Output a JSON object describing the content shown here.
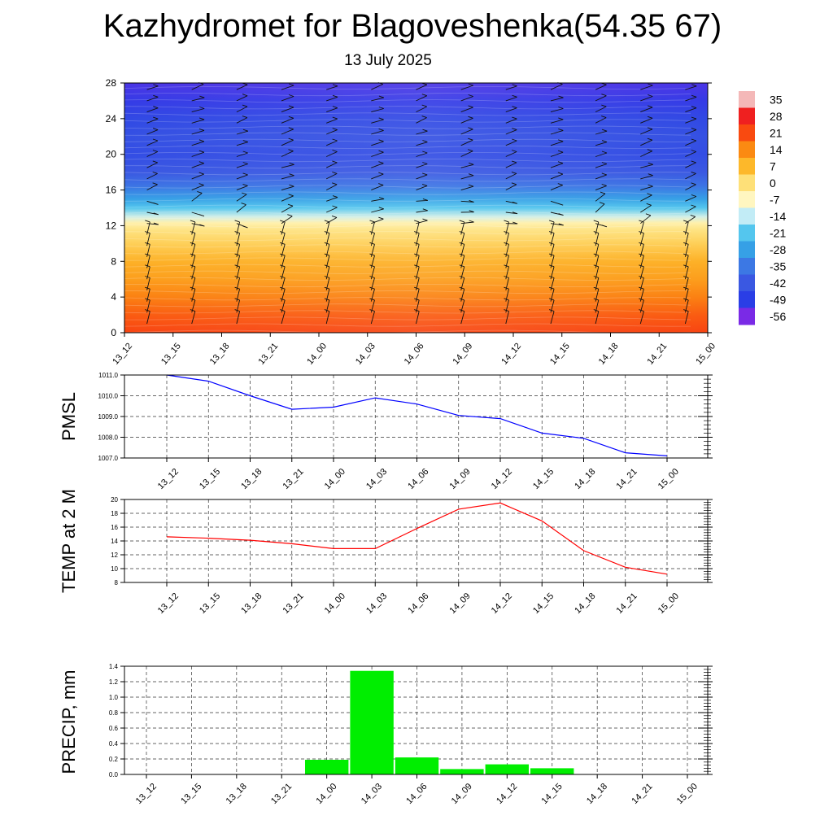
{
  "header": {
    "title": "Kazhydromet for Blagoveshenka(54.35 67)",
    "subtitle": "13 July 2025"
  },
  "chart_data": [
    {
      "type": "heatmap",
      "categories": [
        "13_12",
        "13_15",
        "13_18",
        "13_21",
        "14_00",
        "14_03",
        "14_06",
        "14_09",
        "14_12",
        "14_15",
        "14_18",
        "14_21",
        "15_00"
      ],
      "yticks": [
        0,
        4,
        8,
        12,
        16,
        20,
        24,
        28
      ],
      "ylim": [
        0,
        28
      ],
      "colorbar": {
        "labels": [
          "35",
          "28",
          "21",
          "14",
          "7",
          "0",
          "-7",
          "-14",
          "-21",
          "-28",
          "-35",
          "-42",
          "-49",
          "-56"
        ],
        "colors": [
          "#f4b8b8",
          "#ef2020",
          "#f94a10",
          "#fb8a12",
          "#fdb82a",
          "#fee078",
          "#fff6c0",
          "#c2ecf6",
          "#54c6ee",
          "#36a0e6",
          "#3c78e4",
          "#3a58e2",
          "#2a3ee6",
          "#7a2ae6"
        ]
      },
      "profile": [
        {
          "y": 0,
          "value": 22
        },
        {
          "y": 2,
          "value": 19
        },
        {
          "y": 4,
          "value": 15
        },
        {
          "y": 6,
          "value": 11
        },
        {
          "y": 8,
          "value": 8
        },
        {
          "y": 10,
          "value": 3
        },
        {
          "y": 11.5,
          "value": -1
        },
        {
          "y": 12.3,
          "value": -5
        },
        {
          "y": 13,
          "value": -12
        },
        {
          "y": 14,
          "value": -21
        },
        {
          "y": 15,
          "value": -28
        },
        {
          "y": 16.5,
          "value": -36
        },
        {
          "y": 18,
          "value": -42
        },
        {
          "y": 20,
          "value": -45
        },
        {
          "y": 22,
          "value": -44
        },
        {
          "y": 24,
          "value": -46
        },
        {
          "y": 26,
          "value": -50
        },
        {
          "y": 28,
          "value": -52
        }
      ],
      "grid": false
    },
    {
      "type": "line",
      "ylabel": "PMSL",
      "categories": [
        "13_12",
        "13_15",
        "13_18",
        "13_21",
        "14_00",
        "14_03",
        "14_06",
        "14_09",
        "14_12",
        "14_15",
        "14_18",
        "14_21",
        "15_00"
      ],
      "series": [
        {
          "values": [
            1011.0,
            1010.7,
            1010.0,
            1009.35,
            1009.45,
            1009.9,
            1009.6,
            1009.05,
            1008.9,
            1008.2,
            1007.95,
            1007.25,
            1007.1
          ]
        }
      ],
      "yticks": [
        "1007.0",
        "1008.0",
        "1009.0",
        "1010.0",
        "1011.0"
      ],
      "ylim": [
        1007.0,
        1011.0
      ],
      "color": "#0000ff",
      "grid": true
    },
    {
      "type": "line",
      "ylabel": "TEMP at 2 M",
      "categories": [
        "13_12",
        "13_15",
        "13_18",
        "13_21",
        "14_00",
        "14_03",
        "14_06",
        "14_09",
        "14_12",
        "14_15",
        "14_18",
        "14_21",
        "15_00"
      ],
      "series": [
        {
          "values": [
            14.6,
            14.4,
            14.1,
            13.6,
            12.9,
            12.9,
            15.8,
            18.6,
            19.5,
            16.9,
            12.6,
            10.2,
            9.2
          ]
        }
      ],
      "yticks": [
        "8",
        "10",
        "12",
        "14",
        "16",
        "18",
        "20"
      ],
      "ylim": [
        8,
        20
      ],
      "color": "#ff0000",
      "grid": true
    },
    {
      "type": "bar",
      "ylabel": "PRECIP, mm",
      "categories": [
        "13_12",
        "13_15",
        "13_18",
        "13_21",
        "14_00",
        "14_03",
        "14_06",
        "14_09",
        "14_12",
        "14_15",
        "14_18",
        "14_21",
        "15_00"
      ],
      "values": [
        0,
        0,
        0,
        0,
        0.19,
        1.34,
        0.22,
        0.07,
        0.13,
        0.08,
        0,
        0,
        0
      ],
      "yticks": [
        "0.0",
        "0.2",
        "0.4",
        "0.6",
        "0.8",
        "1.0",
        "1.2",
        "1.4"
      ],
      "ylim": [
        0,
        1.4
      ],
      "color": "#00ee00",
      "grid": true
    }
  ]
}
